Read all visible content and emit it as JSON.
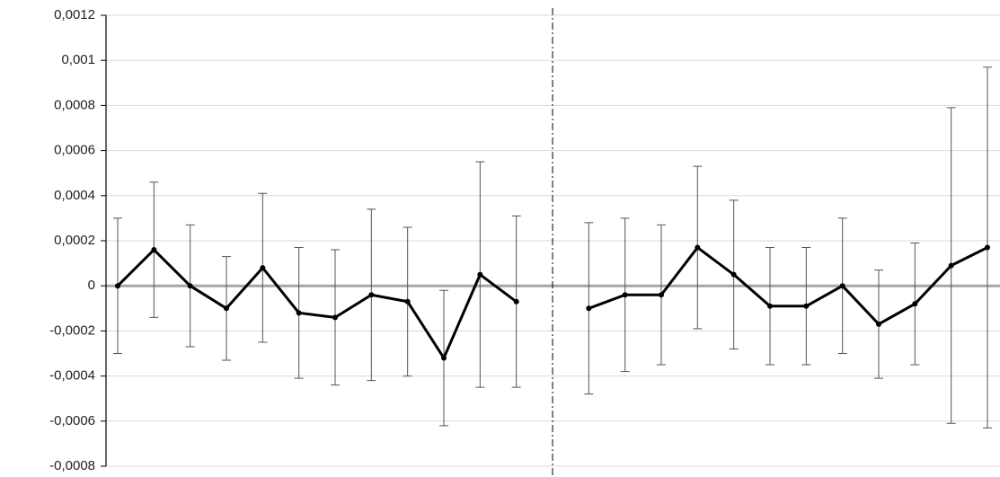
{
  "chart_data": {
    "type": "line",
    "categories": [
      null,
      null,
      null,
      null,
      null,
      null,
      null,
      null,
      null,
      null,
      null,
      null,
      null,
      null,
      null,
      null,
      null,
      null,
      null,
      null,
      null,
      null,
      null,
      null,
      null
    ],
    "values": [
      0,
      0.00016,
      0,
      -0.0001,
      8e-05,
      -0.00012,
      -0.00014,
      -4e-05,
      -7e-05,
      -0.00032,
      5e-05,
      -7e-05,
      null,
      -0.0001,
      -4e-05,
      -4e-05,
      0.00017,
      5e-05,
      -9e-05,
      -9e-05,
      0,
      -0.00017,
      -8e-05,
      9e-05,
      0.00017
    ],
    "errors": [
      0.0003,
      0.0003,
      0.00027,
      0.00023,
      0.00033,
      0.00029,
      0.0003,
      0.00038,
      0.00033,
      0.0003,
      0.0005,
      0.00038,
      null,
      0.00038,
      0.00034,
      0.00031,
      0.00036,
      0.00033,
      0.00026,
      0.00026,
      0.0003,
      0.00024,
      0.00027,
      0.0007,
      0.0008
    ],
    "color": "#000000",
    "ylim": [
      -0.0008,
      0.0012
    ],
    "yticks": [
      {
        "value": -0.0008,
        "label": "-0,0008"
      },
      {
        "value": -0.0006,
        "label": "-0,0006"
      },
      {
        "value": -0.0004,
        "label": "-0,0004"
      },
      {
        "value": -0.0002,
        "label": "-0,0002"
      },
      0,
      {
        "value": 0.0002,
        "label": "0,0002"
      },
      {
        "value": 0.0004,
        "label": "0,0004"
      },
      {
        "value": 0.0006,
        "label": "0,0006"
      },
      {
        "value": 0.0008,
        "label": "0,0008"
      },
      {
        "value": 0.001,
        "label": "0,001"
      },
      {
        "value": 0.0012,
        "label": "0,0012"
      }
    ],
    "grid": true
  }
}
